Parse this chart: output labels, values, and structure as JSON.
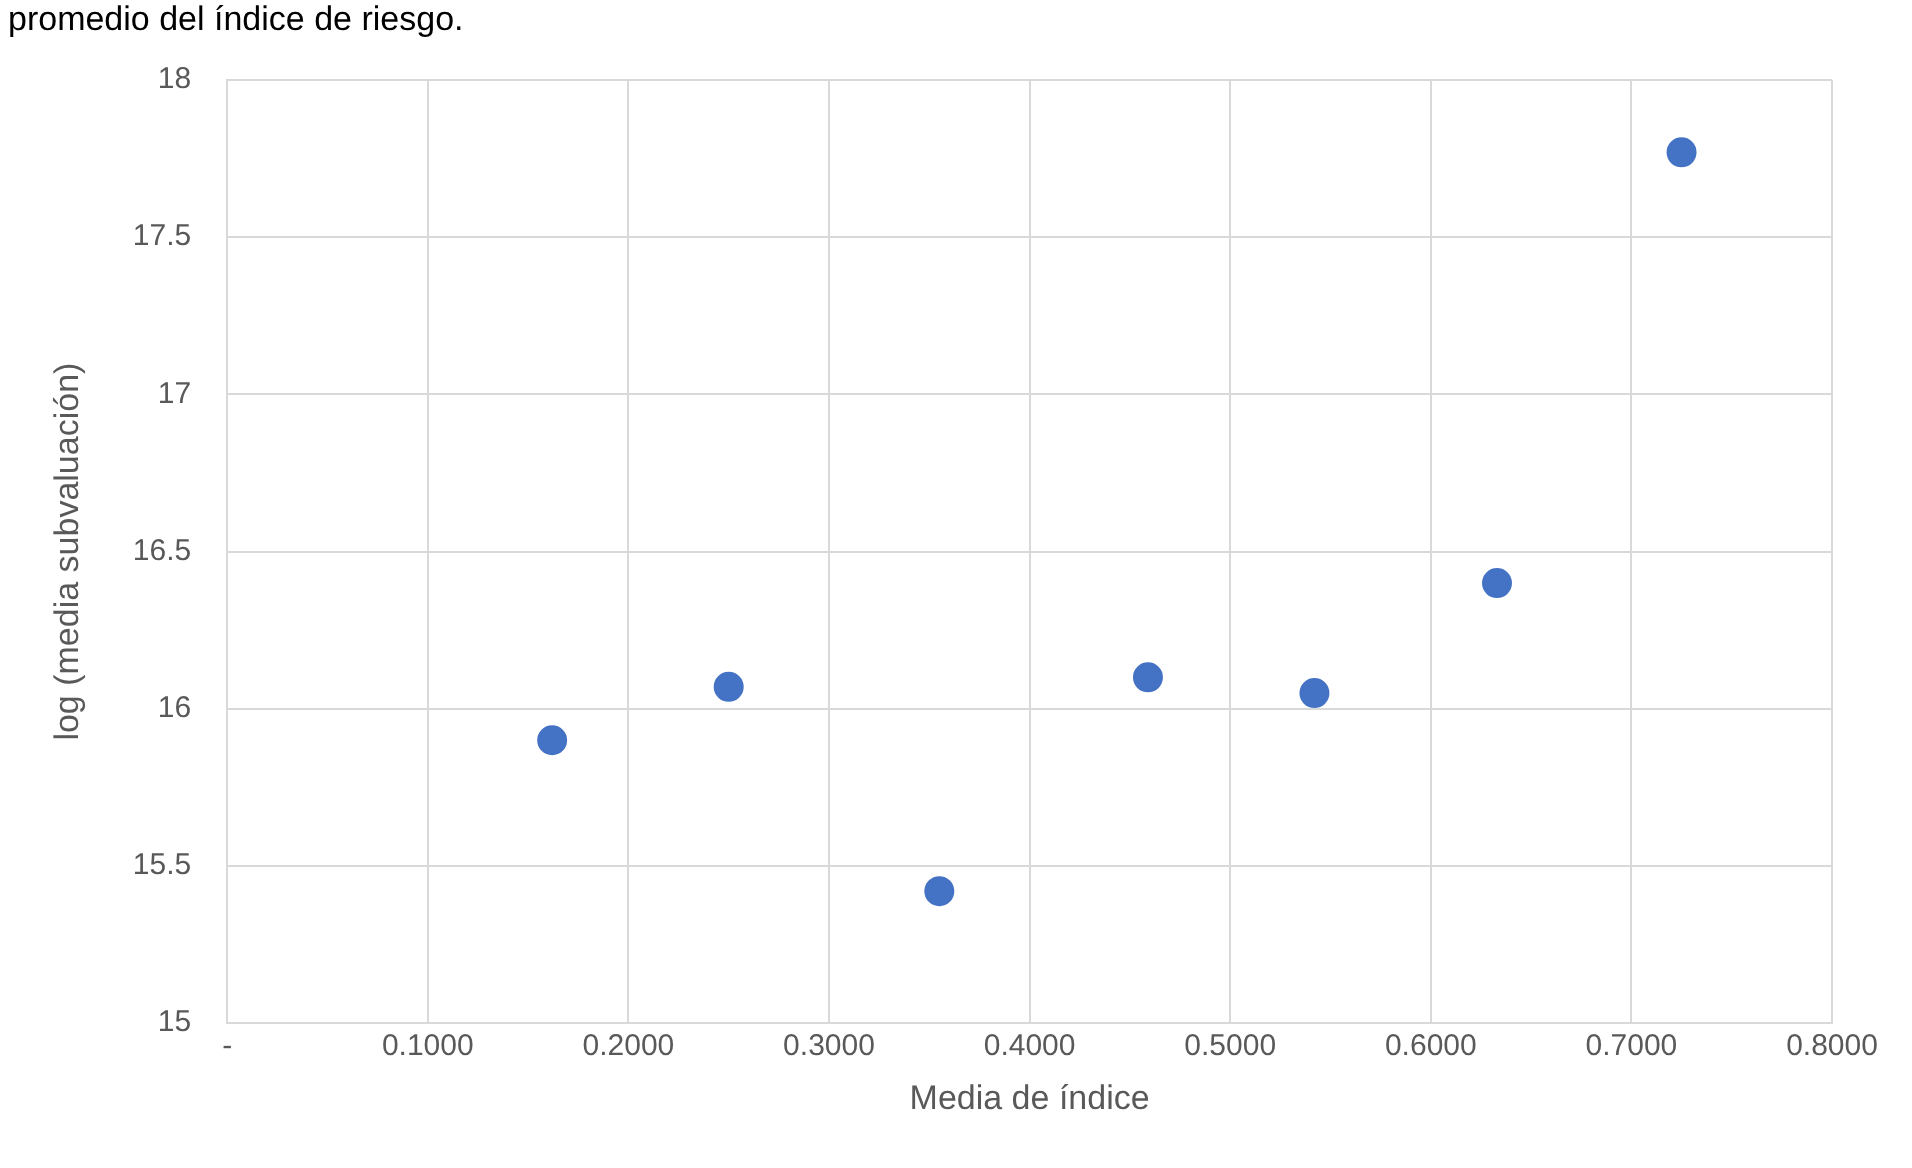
{
  "chart_data": {
    "type": "scatter",
    "xlabel": "Media de índice",
    "ylabel": "log (media subvaluación)",
    "annotations": [
      "promedio del índice de riesgo."
    ],
    "x": [
      0.162,
      0.25,
      0.355,
      0.459,
      0.542,
      0.633,
      0.725
    ],
    "series": [
      {
        "color": "#4472c4",
        "values": [
          15.9,
          16.07,
          15.42,
          16.1,
          16.05,
          16.4,
          17.77
        ]
      }
    ],
    "xlim": [
      0,
      0.8
    ],
    "xticks": [
      {
        "value": 0,
        "label": "-"
      },
      {
        "value": 0.1,
        "label": "0.1000"
      },
      {
        "value": 0.2,
        "label": "0.2000"
      },
      {
        "value": 0.3,
        "label": "0.3000"
      },
      {
        "value": 0.4,
        "label": "0.4000"
      },
      {
        "value": 0.5,
        "label": "0.5000"
      },
      {
        "value": 0.6,
        "label": "0.6000"
      },
      {
        "value": 0.7,
        "label": "0.7000"
      },
      {
        "value": 0.8,
        "label": "0.8000"
      }
    ],
    "ylim": [
      15,
      18
    ],
    "yticks": [
      15,
      15.5,
      16,
      16.5,
      17,
      17.5,
      18
    ],
    "grid": true,
    "marker": "circle",
    "legend": false
  }
}
